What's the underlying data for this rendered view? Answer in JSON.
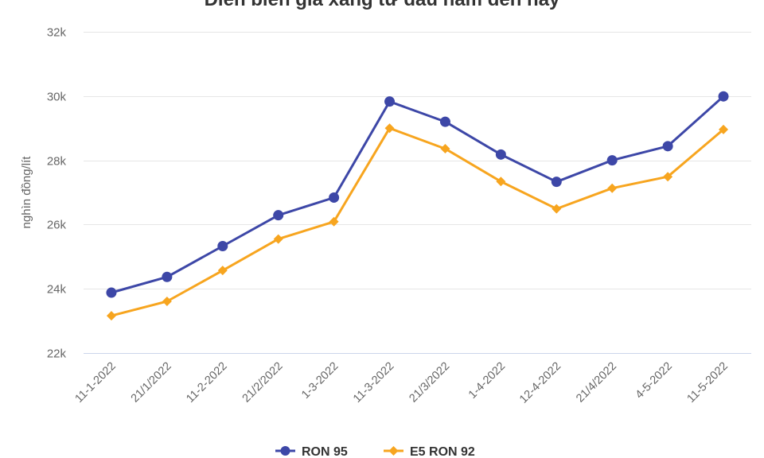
{
  "chart_data": {
    "type": "line",
    "title": "Diễn biến giá xăng từ đầu năm đến nay",
    "xlabel": "",
    "ylabel": "nghìn đồng/lít",
    "categories": [
      "11-1-2022",
      "21/1/2022",
      "11-2-2022",
      "21/2/2022",
      "1-3-2022",
      "11-3-2022",
      "21/3/2022",
      "1-4-2022",
      "12-4-2022",
      "21/4/2022",
      "4-5-2022",
      "11-5-2022"
    ],
    "ylim": [
      22000,
      32000
    ],
    "yticks": [
      22000,
      24000,
      26000,
      28000,
      30000,
      32000
    ],
    "ytick_labels": [
      "22k",
      "24k",
      "26k",
      "28k",
      "30k",
      "32k"
    ],
    "grid": true,
    "legend": "bottom-center",
    "series": [
      {
        "name": "RON 95",
        "color": "#3d47a7",
        "marker": "circle",
        "values": [
          23880,
          24370,
          25330,
          26290,
          26840,
          29830,
          29200,
          28180,
          27330,
          28000,
          28440,
          29990
        ]
      },
      {
        "name": "E5 RON 92",
        "color": "#f7a51f",
        "marker": "diamond",
        "values": [
          23160,
          23610,
          24570,
          25550,
          26090,
          29000,
          28360,
          27340,
          26490,
          27130,
          27490,
          28960
        ]
      }
    ]
  }
}
